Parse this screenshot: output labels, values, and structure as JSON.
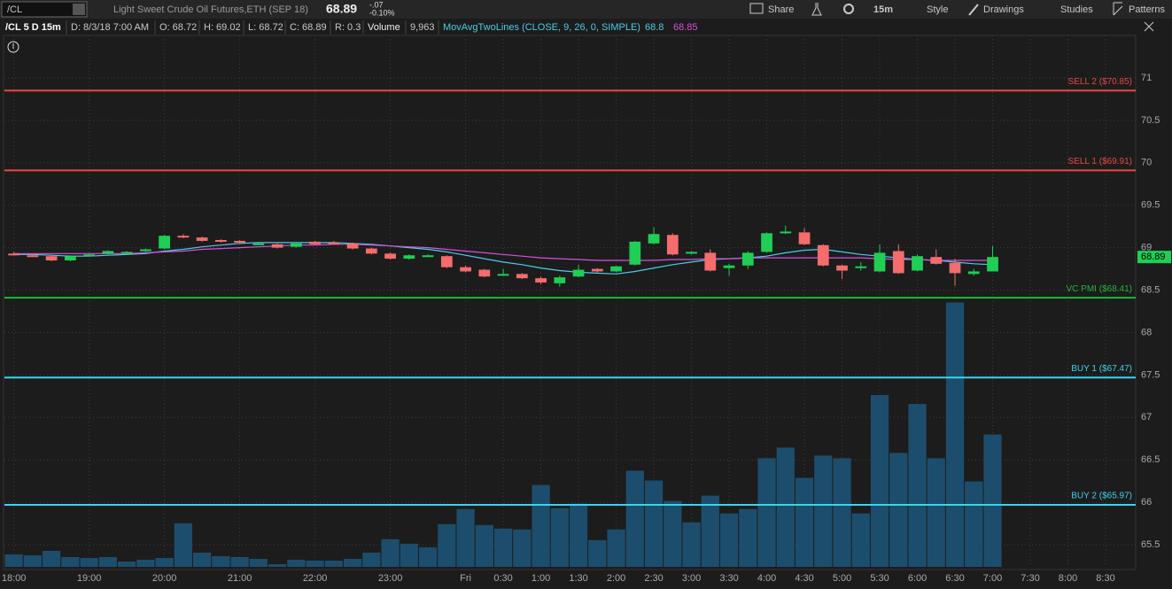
{
  "header": {
    "symbol": "/CL",
    "description": "Light Sweet Crude Oil Futures,ETH (SEP 18)",
    "change": "-.07",
    "change_pct": "-0.10%",
    "buttons": [
      "Share",
      "15m",
      "Style",
      "Drawings",
      "Studies",
      "Patterns"
    ]
  },
  "info": {
    "chart": "/CL 5 D 15m",
    "date": "D: 8/3/18 7:00 AM",
    "open": "O: 68.72",
    "high": "H: 69.02",
    "low": "L: 68.72",
    "close": "C: 68.89",
    "range": "R: 0.3",
    "volume": "9,963"
  },
  "chart_data": {
    "type": "candlestick",
    "xlim": [
      -0.5,
      59.6
    ],
    "xticks": [
      {
        "value": 0,
        "label": "18:00"
      },
      {
        "value": 4,
        "label": "19:00"
      },
      {
        "value": 8,
        "label": "20:00"
      },
      {
        "value": 12,
        "label": "21:00"
      },
      {
        "value": 16,
        "label": "22:00"
      },
      {
        "value": 20,
        "label": "23:00"
      },
      {
        "value": 24,
        "label": "Fri"
      },
      {
        "value": 26,
        "label": "0:30"
      },
      {
        "value": 28,
        "label": "1:00"
      },
      {
        "value": 30,
        "label": "1:30"
      },
      {
        "value": 32,
        "label": "2:00"
      },
      {
        "value": 34,
        "label": "2:30"
      },
      {
        "value": 36,
        "label": "3:00"
      },
      {
        "value": 38,
        "label": "3:30"
      },
      {
        "value": 40,
        "label": "4:00"
      },
      {
        "value": 42,
        "label": "4:30"
      },
      {
        "value": 44,
        "label": "5:00"
      },
      {
        "value": 46,
        "label": "5:30"
      },
      {
        "value": 48,
        "label": "6:00"
      },
      {
        "value": 50,
        "label": "6:30"
      },
      {
        "value": 52,
        "label": "7:00"
      },
      {
        "value": 54,
        "label": "7:30"
      },
      {
        "value": 56,
        "label": "8:00"
      },
      {
        "value": 58,
        "label": "8:30"
      }
    ],
    "ylim": [
      65.24,
      71.5
    ],
    "yticks": [
      65.5,
      66,
      66.5,
      67,
      67.5,
      68,
      68.5,
      69,
      69.5,
      70,
      70.5,
      71
    ],
    "y2lim": [
      0,
      40000
    ],
    "grid": true,
    "up_color": "#1fcf55",
    "down_color": "#f56c6c",
    "open": [
      68.93,
      68.91,
      68.9,
      68.85,
      68.91,
      68.93,
      68.95,
      68.96,
      68.99,
      69.14,
      69.12,
      69.09,
      69.08,
      69.05,
      69.04,
      69.01,
      69.07,
      69.06,
      69.05,
      68.99,
      68.93,
      68.87,
      68.91,
      68.9,
      68.77,
      68.74,
      68.68,
      68.69,
      68.64,
      68.58,
      68.66,
      68.75,
      68.72,
      68.8,
      69.05,
      69.15,
      68.93,
      68.94,
      68.76,
      68.79,
      68.95,
      69.17,
      69.18,
      69.03,
      68.79,
      68.76,
      68.72,
      68.96,
      68.73,
      68.89,
      68.82,
      68.69,
      68.72
    ],
    "high": [
      68.95,
      68.92,
      68.91,
      68.91,
      68.93,
      68.97,
      68.96,
      68.99,
      69.15,
      69.16,
      69.13,
      69.1,
      69.09,
      69.06,
      69.05,
      69.06,
      69.08,
      69.08,
      69.06,
      69.0,
      68.94,
      68.92,
      68.92,
      68.91,
      68.79,
      68.75,
      68.75,
      68.7,
      68.66,
      68.67,
      68.8,
      68.76,
      68.79,
      69.08,
      69.24,
      69.17,
      68.96,
      68.98,
      68.81,
      68.96,
      69.18,
      69.26,
      69.23,
      69.04,
      68.8,
      68.83,
      69.04,
      69.04,
      68.92,
      68.98,
      68.87,
      68.75,
      69.02
    ],
    "low": [
      68.91,
      68.89,
      68.84,
      68.84,
      68.9,
      68.92,
      68.94,
      68.95,
      68.98,
      69.11,
      69.07,
      69.06,
      69.05,
      69.04,
      68.99,
      69.0,
      69.03,
      69.04,
      68.98,
      68.92,
      68.86,
      68.86,
      68.9,
      68.76,
      68.71,
      68.65,
      68.67,
      68.63,
      68.57,
      68.54,
      68.65,
      68.71,
      68.71,
      68.79,
      69.04,
      68.91,
      68.92,
      68.72,
      68.67,
      68.75,
      68.94,
      69.16,
      69.03,
      68.78,
      68.63,
      68.73,
      68.71,
      68.69,
      68.72,
      68.8,
      68.55,
      68.67,
      68.72
    ],
    "close": [
      68.92,
      68.9,
      68.85,
      68.9,
      68.92,
      68.96,
      68.95,
      68.98,
      69.14,
      69.12,
      69.08,
      69.07,
      69.06,
      69.05,
      69.0,
      69.05,
      69.04,
      69.05,
      68.99,
      68.93,
      68.87,
      68.91,
      68.91,
      68.77,
      68.72,
      68.66,
      68.69,
      68.64,
      68.59,
      68.65,
      68.74,
      68.72,
      68.78,
      69.07,
      69.16,
      68.92,
      68.95,
      68.73,
      68.79,
      68.94,
      69.17,
      69.19,
      69.04,
      68.79,
      68.73,
      68.78,
      68.94,
      68.7,
      68.9,
      68.81,
      68.7,
      68.72,
      68.89
    ],
    "volume": {
      "name": "Volume",
      "color": "#1d4d6c",
      "axis": "y2",
      "values": [
        938,
        871,
        1206,
        737,
        670,
        737,
        402,
        536,
        670,
        3283,
        1072,
        804,
        737,
        603,
        201,
        536,
        469,
        469,
        603,
        1072,
        2077,
        1742,
        1474,
        3216,
        4355,
        3149,
        2881,
        2814,
        6164,
        4422,
        4757,
        2010,
        2814,
        7236,
        6499,
        4958,
        3350,
        5360,
        4020,
        4355,
        8174,
        8978,
        6700,
        8375,
        8174,
        4020,
        12931,
        8576,
        12261,
        8174,
        19899,
        6432,
        9963
      ]
    },
    "studies": {
      "name": "MovAvgTwoLines (CLOSE, 9, 26, 0, SIMPLE)",
      "lines": [
        {
          "color": "#4ecbe8",
          "values": [
            68.92,
            68.92,
            68.91,
            68.9,
            68.9,
            68.91,
            68.92,
            68.93,
            68.96,
            68.98,
            69.01,
            69.03,
            69.05,
            69.06,
            69.06,
            69.06,
            69.06,
            69.06,
            69.05,
            69.04,
            69.02,
            69.0,
            68.98,
            68.95,
            68.91,
            68.87,
            68.83,
            68.8,
            68.76,
            68.73,
            68.71,
            68.7,
            68.69,
            68.72,
            68.76,
            68.8,
            68.83,
            68.86,
            68.87,
            68.88,
            68.9,
            68.94,
            68.97,
            68.98,
            68.95,
            68.92,
            68.9,
            68.88,
            68.86,
            68.85,
            68.83,
            68.81,
            68.8
          ]
        },
        {
          "color": "#d452d8",
          "values": [
            68.93,
            68.93,
            68.93,
            68.93,
            68.93,
            68.93,
            68.93,
            68.94,
            68.95,
            68.96,
            68.98,
            68.99,
            69.0,
            69.01,
            69.02,
            69.03,
            69.03,
            69.04,
            69.04,
            69.03,
            69.02,
            69.01,
            69.0,
            68.98,
            68.96,
            68.94,
            68.92,
            68.9,
            68.88,
            68.87,
            68.86,
            68.85,
            68.85,
            68.85,
            68.85,
            68.86,
            68.86,
            68.87,
            68.87,
            68.88,
            68.88,
            68.88,
            68.88,
            68.88,
            68.88,
            68.88,
            68.87,
            68.86,
            68.86,
            68.85,
            68.85,
            68.85,
            68.85
          ]
        }
      ]
    },
    "levels": [
      {
        "label": "SELL 2 ($70.85)",
        "value": 70.85,
        "color": "#e8474a"
      },
      {
        "label": "SELL 1 ($69.91)",
        "value": 69.91,
        "color": "#e8474a"
      },
      {
        "label": "VC PMI ($68.41)",
        "value": 68.41,
        "color": "#22b53c"
      },
      {
        "label": "BUY 1 ($67.47)",
        "value": 67.47,
        "color": "#3fd3ea"
      },
      {
        "label": "BUY 2 ($65.97)",
        "value": 65.97,
        "color": "#3fd3ea"
      }
    ]
  }
}
